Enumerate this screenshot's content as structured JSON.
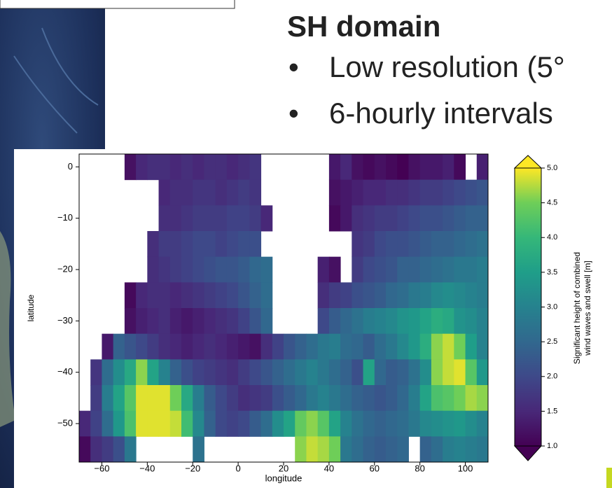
{
  "slide": {
    "heading": "SH domain",
    "bullets": [
      "Low resolution (5°",
      "6-hourly intervals"
    ]
  },
  "chart_data": {
    "type": "heatmap",
    "x_label": "longitude",
    "y_label": "latitude",
    "colorbar_label": [
      "Significant height of combined",
      "wind waves and swell [m]"
    ],
    "colormap": "viridis",
    "clim": [
      1,
      5
    ],
    "xlim": [
      -70,
      110
    ],
    "ylim": [
      -57.5,
      2.5
    ],
    "xticks": [
      {
        "value": -60,
        "label": "−60"
      },
      {
        "value": -40,
        "label": "−40"
      },
      {
        "value": -20,
        "label": "−20"
      },
      0,
      20,
      40,
      60,
      80,
      100
    ],
    "yticks": [
      0,
      {
        "value": -10,
        "label": "−10"
      },
      {
        "value": -20,
        "label": "−20"
      },
      {
        "value": -30,
        "label": "−30"
      },
      {
        "value": -40,
        "label": "−40"
      },
      {
        "value": -50,
        "label": "−50"
      }
    ],
    "cticks": [
      {
        "value": 1,
        "label": "1.0"
      },
      {
        "value": 1.5,
        "label": "1.5"
      },
      {
        "value": 2,
        "label": "2.0"
      },
      {
        "value": 2.5,
        "label": "2.5"
      },
      {
        "value": 3,
        "label": "3.0"
      },
      {
        "value": 3.5,
        "label": "3.5"
      },
      {
        "value": 4,
        "label": "4.0"
      },
      {
        "value": 4.5,
        "label": "4.5"
      },
      {
        "value": 5,
        "label": "5.0"
      }
    ],
    "xbins": [
      -70,
      -65,
      -60,
      -55,
      -50,
      -45,
      -40,
      -35,
      -30,
      -25,
      -20,
      -15,
      -10,
      -5,
      0,
      5,
      10,
      15,
      20,
      25,
      30,
      35,
      40,
      45,
      50,
      55,
      60,
      65,
      70,
      75,
      80,
      85,
      90,
      95,
      100,
      105,
      110
    ],
    "ybins": [
      2.5,
      -2.5,
      -7.5,
      -12.5,
      -17.5,
      -22.5,
      -27.5,
      -32.5,
      -37.5,
      -42.5,
      -47.5,
      -52.5,
      -57.5
    ],
    "values": [
      [
        null,
        null,
        null,
        null,
        1.2,
        1.5,
        1.6,
        1.6,
        1.5,
        1.6,
        1.5,
        1.6,
        1.6,
        1.5,
        1.6,
        1.7,
        null,
        null,
        null,
        null,
        null,
        null,
        1.3,
        1.5,
        1.2,
        1.1,
        1.2,
        1.1,
        1.0,
        1.2,
        1.3,
        1.3,
        1.4,
        1.1,
        null,
        1.4
      ],
      [
        null,
        null,
        null,
        null,
        null,
        null,
        null,
        1.5,
        1.6,
        1.6,
        1.7,
        1.7,
        1.6,
        1.7,
        1.8,
        1.7,
        null,
        null,
        null,
        null,
        null,
        null,
        1.2,
        1.3,
        1.4,
        1.5,
        1.5,
        1.6,
        1.6,
        1.7,
        1.8,
        1.8,
        1.9,
        2.0,
        2.1,
        2.2
      ],
      [
        null,
        null,
        null,
        null,
        null,
        null,
        null,
        1.6,
        1.6,
        1.7,
        1.8,
        1.8,
        1.8,
        1.9,
        1.9,
        1.8,
        1.5,
        null,
        null,
        null,
        null,
        null,
        1.1,
        1.3,
        1.6,
        1.7,
        1.8,
        1.8,
        1.9,
        2.0,
        2.1,
        2.1,
        2.2,
        2.3,
        2.4,
        2.4
      ],
      [
        null,
        null,
        null,
        null,
        null,
        null,
        1.6,
        1.8,
        1.8,
        1.9,
        2.0,
        2.0,
        1.9,
        2.0,
        2.1,
        2.1,
        null,
        null,
        null,
        null,
        null,
        null,
        null,
        null,
        1.7,
        1.8,
        2.0,
        2.1,
        2.1,
        2.2,
        2.3,
        2.4,
        2.4,
        2.5,
        2.6,
        2.7
      ],
      [
        null,
        null,
        null,
        null,
        null,
        null,
        1.6,
        1.7,
        1.8,
        1.9,
        2.0,
        2.1,
        2.2,
        2.2,
        2.3,
        2.5,
        2.6,
        null,
        null,
        null,
        null,
        1.4,
        1.2,
        null,
        1.8,
        2.0,
        2.1,
        2.2,
        2.4,
        2.4,
        2.5,
        2.6,
        2.7,
        2.8,
        2.8,
        2.9
      ],
      [
        null,
        null,
        null,
        null,
        1.1,
        1.5,
        1.6,
        1.6,
        1.5,
        1.6,
        1.7,
        1.8,
        1.9,
        2.0,
        2.2,
        2.4,
        2.6,
        null,
        null,
        null,
        null,
        1.6,
        1.8,
        1.9,
        2.1,
        2.2,
        2.3,
        2.5,
        2.6,
        2.8,
        2.9,
        3.1,
        3.2,
        3.1,
        3.0,
        2.9
      ],
      [
        null,
        null,
        null,
        null,
        1.2,
        1.4,
        1.5,
        1.6,
        1.4,
        1.3,
        1.4,
        1.5,
        1.6,
        1.7,
        1.9,
        2.2,
        2.5,
        null,
        null,
        null,
        null,
        2.0,
        2.3,
        2.5,
        2.7,
        2.9,
        3.0,
        3.1,
        3.3,
        3.4,
        3.6,
        3.8,
        3.7,
        3.3,
        3.2,
        3.0
      ],
      [
        null,
        null,
        1.3,
        2.4,
        2.2,
        2.0,
        1.8,
        1.6,
        1.5,
        1.4,
        1.5,
        1.6,
        1.5,
        1.4,
        1.3,
        1.2,
        1.6,
        1.9,
        2.2,
        2.4,
        2.6,
        2.8,
        2.9,
        2.6,
        2.5,
        2.3,
        2.6,
        2.8,
        3.1,
        3.4,
        3.8,
        4.6,
        4.8,
        4.5,
        3.5,
        3.0
      ],
      [
        null,
        1.7,
        2.6,
        3.2,
        3.7,
        4.6,
        3.6,
        3.0,
        2.4,
        2.1,
        1.9,
        1.8,
        1.7,
        1.6,
        1.8,
        2.0,
        2.2,
        2.4,
        2.6,
        2.8,
        3.0,
        2.8,
        2.6,
        2.4,
        2.1,
        3.6,
        2.5,
        2.3,
        2.4,
        2.7,
        3.2,
        4.6,
        4.8,
        4.9,
        4.3,
        3.4
      ],
      [
        null,
        1.8,
        2.9,
        3.6,
        4.3,
        4.9,
        4.9,
        4.9,
        4.5,
        3.7,
        2.9,
        2.3,
        2.0,
        1.8,
        1.6,
        1.7,
        1.8,
        2.1,
        2.3,
        2.5,
        2.8,
        3.0,
        2.8,
        2.6,
        2.4,
        2.3,
        2.2,
        2.3,
        2.5,
        2.9,
        3.6,
        4.2,
        4.3,
        4.5,
        4.7,
        4.6
      ],
      [
        1.5,
        1.9,
        2.6,
        3.4,
        4.2,
        4.9,
        4.9,
        4.9,
        4.8,
        4.1,
        3.1,
        2.4,
        2.0,
        1.9,
        2.0,
        2.3,
        2.6,
        3.2,
        3.6,
        4.4,
        4.6,
        4.3,
        3.6,
        3.0,
        2.7,
        2.5,
        2.4,
        2.5,
        2.6,
        2.8,
        3.1,
        3.2,
        3.3,
        3.4,
        3.2,
        3.0
      ],
      [
        1.1,
        1.6,
        1.8,
        2.1,
        2.8,
        null,
        null,
        null,
        null,
        null,
        2.7,
        null,
        null,
        null,
        null,
        null,
        null,
        null,
        null,
        4.6,
        4.8,
        4.7,
        4.5,
        2.8,
        2.6,
        2.4,
        2.3,
        2.4,
        2.5,
        null,
        2.4,
        2.6,
        2.9,
        3.0,
        2.9,
        2.8
      ]
    ]
  }
}
